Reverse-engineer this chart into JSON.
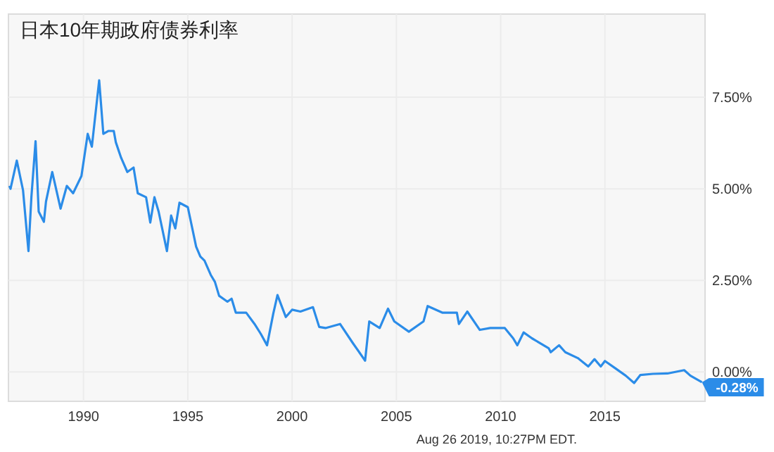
{
  "chart_data": {
    "type": "line",
    "title": "日本10年期政府债券利率",
    "x": [
      1986.45,
      1986.5,
      1986.8,
      1987.1,
      1987.36,
      1987.5,
      1987.7,
      1987.85,
      1988.1,
      1988.2,
      1988.5,
      1988.9,
      1989.2,
      1989.5,
      1989.9,
      1990.2,
      1990.4,
      1990.75,
      1990.95,
      1991.2,
      1991.45,
      1991.55,
      1991.8,
      1992.1,
      1992.4,
      1992.6,
      1993.0,
      1993.2,
      1993.4,
      1993.6,
      1994.0,
      1994.2,
      1994.4,
      1994.6,
      1995.0,
      1995.4,
      1995.6,
      1995.8,
      1996.1,
      1996.3,
      1996.5,
      1996.9,
      1997.1,
      1997.3,
      1997.8,
      1998.2,
      1998.5,
      1998.8,
      1999.1,
      1999.3,
      1999.7,
      2000.0,
      2000.4,
      2001.0,
      2001.3,
      2001.6,
      2002.3,
      2002.9,
      2003.5,
      2003.7,
      2004.2,
      2004.6,
      2004.9,
      2005.6,
      2006.3,
      2006.5,
      2007.2,
      2007.9,
      2008.0,
      2008.4,
      2009.0,
      2009.5,
      2010.2,
      2010.6,
      2010.8,
      2011.1,
      2011.5,
      2012.3,
      2012.4,
      2012.8,
      2013.1,
      2013.7,
      2014.2,
      2014.5,
      2014.8,
      2015.0,
      2015.5,
      2016.0,
      2016.4,
      2016.7,
      2017.3,
      2018.0,
      2018.8,
      2019.1,
      2019.65
    ],
    "values": [
      5.08,
      5.0,
      5.77,
      4.96,
      3.3,
      4.77,
      6.3,
      4.38,
      4.1,
      4.65,
      5.46,
      4.46,
      5.08,
      4.88,
      5.35,
      6.5,
      6.15,
      7.96,
      6.5,
      6.58,
      6.58,
      6.27,
      5.85,
      5.46,
      5.58,
      4.88,
      4.77,
      4.08,
      4.77,
      4.38,
      3.3,
      4.27,
      3.92,
      4.62,
      4.5,
      3.42,
      3.15,
      3.04,
      2.65,
      2.46,
      2.08,
      1.92,
      2.0,
      1.62,
      1.62,
      1.31,
      1.04,
      0.73,
      1.6,
      2.1,
      1.5,
      1.7,
      1.65,
      1.77,
      1.23,
      1.2,
      1.31,
      0.8,
      0.31,
      1.38,
      1.2,
      1.73,
      1.38,
      1.1,
      1.38,
      1.8,
      1.62,
      1.62,
      1.31,
      1.65,
      1.15,
      1.2,
      1.2,
      0.92,
      0.73,
      1.08,
      0.92,
      0.65,
      0.54,
      0.73,
      0.54,
      0.38,
      0.15,
      0.35,
      0.15,
      0.3,
      0.1,
      -0.1,
      -0.3,
      -0.08,
      -0.05,
      -0.04,
      0.05,
      -0.1,
      -0.28
    ],
    "color": "#2b8ce8",
    "xlim": [
      1986.4,
      2019.8
    ],
    "xticks": [
      1990,
      1995,
      2000,
      2005,
      2010,
      2015
    ],
    "ylim": [
      -0.8,
      9.77
    ],
    "yticks": [
      {
        "value": 0,
        "label": "0.00%"
      },
      {
        "value": 2.5,
        "label": "2.50%"
      },
      {
        "value": 5,
        "label": "5.00%"
      },
      {
        "value": 7.5,
        "label": "7.50%"
      }
    ],
    "grid": true,
    "marker": "none",
    "line_style": "solid",
    "annotations": [
      {
        "text": "-0.28%",
        "x": 2019.65,
        "y": -0.28
      },
      "Aug 26 2019, 10:27PM EDT."
    ]
  }
}
